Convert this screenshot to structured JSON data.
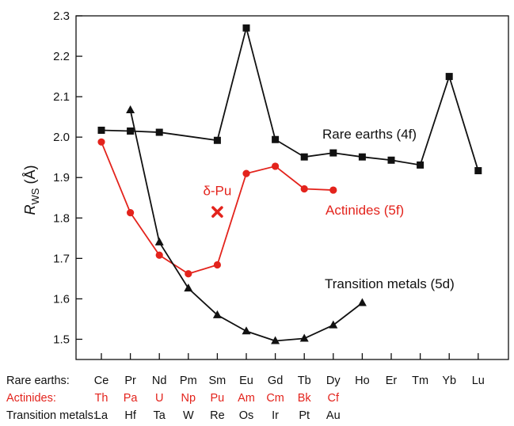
{
  "chart_data": {
    "type": "line",
    "ylabel_symbol": "R",
    "ylabel_sub": "WS",
    "ylabel_unit": " (Å)",
    "ylim": [
      1.45,
      2.3
    ],
    "yticks": [
      1.5,
      1.6,
      1.7,
      1.8,
      1.9,
      2.0,
      2.1,
      2.2,
      2.3
    ],
    "x_slots": 15,
    "grid": false,
    "colors": {
      "black": "#111111",
      "red": "#e3231c"
    },
    "series": [
      {
        "name": "Rare earths (4f)",
        "color": "#111111",
        "marker": "square",
        "x": [
          0,
          1,
          2,
          4,
          5,
          6,
          7,
          8,
          9,
          10,
          11,
          12,
          13
        ],
        "y": [
          2.017,
          2.015,
          2.012,
          1.992,
          2.27,
          1.994,
          1.951,
          1.961,
          1.951,
          1.943,
          1.931,
          2.15,
          1.917
        ]
      },
      {
        "name": "Actinides (5f)",
        "color": "#e3231c",
        "marker": "circle",
        "x": [
          0,
          1,
          2,
          3,
          4,
          5,
          6,
          7,
          8
        ],
        "y": [
          1.988,
          1.813,
          1.708,
          1.662,
          1.684,
          1.91,
          1.928,
          1.872,
          1.869
        ]
      },
      {
        "name": "Transition metals (5d)",
        "color": "#111111",
        "marker": "triangle",
        "x": [
          1,
          2,
          3,
          4,
          5,
          6,
          7,
          8,
          9
        ],
        "y": [
          2.067,
          1.74,
          1.626,
          1.56,
          1.52,
          1.496,
          1.502,
          1.535,
          1.59
        ]
      }
    ],
    "annotation": {
      "text": "δ-Pu",
      "x": 4,
      "y": 1.815,
      "color": "#e3231c",
      "marker": "x"
    },
    "rows": [
      {
        "label": "Rare earths:",
        "color": "#111111",
        "items": [
          "Ce",
          "Pr",
          "Nd",
          "Pm",
          "Sm",
          "Eu",
          "Gd",
          "Tb",
          "Dy",
          "Ho",
          "Er",
          "Tm",
          "Yb",
          "Lu"
        ]
      },
      {
        "label": "Actinides:",
        "color": "#e3231c",
        "items": [
          "Th",
          "Pa",
          "U",
          "Np",
          "Pu",
          "Am",
          "Cm",
          "Bk",
          "Cf"
        ]
      },
      {
        "label": "Transition metals:",
        "color": "#111111",
        "items": [
          "La",
          "Hf",
          "Ta",
          "W",
          "Re",
          "Os",
          "Ir",
          "Pt",
          "Au"
        ]
      }
    ]
  }
}
